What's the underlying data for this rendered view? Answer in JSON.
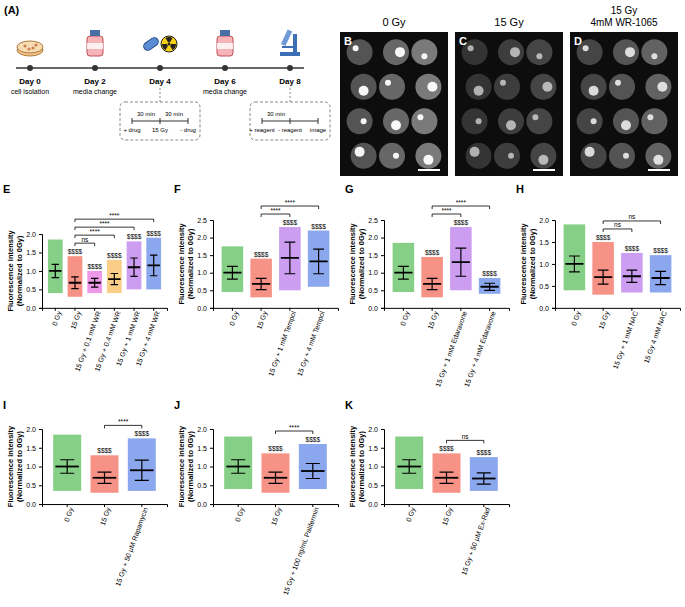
{
  "timeline": {
    "panel": "(A)",
    "steps": [
      {
        "day": "Day 0",
        "event": "cell isolation"
      },
      {
        "day": "Day 2",
        "event": "media change"
      },
      {
        "day": "Day 4",
        "intervals": [
          "30 min",
          "30 min"
        ],
        "points": [
          "+ drug",
          "15 Gy",
          "- drug"
        ]
      },
      {
        "day": "Day 6",
        "event": "media change"
      },
      {
        "day": "Day 8",
        "intervals": [
          "30 min"
        ],
        "points": [
          "+ reagent",
          "- reagent",
          "image"
        ]
      }
    ]
  },
  "images": [
    {
      "panel": "B",
      "title": [
        "0 Gy"
      ]
    },
    {
      "panel": "C",
      "title": [
        "15 Gy"
      ]
    },
    {
      "panel": "D",
      "title": [
        "15 Gy",
        "4mM WR-1065"
      ]
    }
  ],
  "chart_data": [
    {
      "type": "dot_plot",
      "panel": "E",
      "ylabel": "Fluorescence intensity (Normalized to 0Gy)",
      "categories": [
        "0 Gy",
        "15 Gy",
        "15 Gy + 0.1 mM WR",
        "15 Gy + 0.4 mM WR",
        "15 Gy + 1 mM WR",
        "15 Gy + 4 mM WR"
      ],
      "values": [
        1.0,
        0.68,
        0.68,
        0.78,
        1.1,
        1.15
      ],
      "error": [
        0.18,
        0.16,
        0.12,
        0.15,
        0.25,
        0.28
      ],
      "min": [
        0.4,
        0.3,
        0.4,
        0.4,
        0.5,
        0.5
      ],
      "max": [
        1.85,
        1.4,
        1.0,
        1.3,
        1.8,
        1.9
      ],
      "colors": [
        "#22a722",
        "#ee3a22",
        "#e046d6",
        "#f5a524",
        "#a24de6",
        "#2c5fe0"
      ],
      "ylim": [
        0,
        2
      ],
      "yticks": [
        {
          "value": 0,
          "label": "0.0"
        },
        {
          "value": 0.5,
          "label": "0.5"
        },
        {
          "value": 1,
          "label": "1.0"
        },
        {
          "value": 1.5,
          "label": "1.5"
        },
        {
          "value": 2,
          "label": "2.0"
        }
      ],
      "annotations": [
        {
          "category": 1,
          "text": "$$$$"
        },
        {
          "category": 2,
          "text": "$$$$"
        },
        {
          "category": 3,
          "text": "$$$$"
        },
        {
          "category": 4,
          "text": "$$$$"
        },
        {
          "category": 5,
          "text": "$$$$"
        }
      ],
      "brackets": [
        {
          "from": 1,
          "to": 2,
          "label": "ns"
        },
        {
          "from": 1,
          "to": 3,
          "label": "****"
        },
        {
          "from": 1,
          "to": 4,
          "label": "****"
        },
        {
          "from": 1,
          "to": 5,
          "label": "****"
        }
      ]
    },
    {
      "type": "dot_plot",
      "panel": "F",
      "ylabel": "Fluorescence intensity (Normalized to 0Gy)",
      "categories": [
        "0 Gy",
        "15 Gy",
        "15 Gy + 1 mM Tempol",
        "15 Gy + 4 mM Tempol"
      ],
      "values": [
        1.0,
        0.68,
        1.42,
        1.32
      ],
      "error": [
        0.18,
        0.16,
        0.45,
        0.35
      ],
      "min": [
        0.45,
        0.3,
        0.5,
        0.6
      ],
      "max": [
        1.75,
        1.4,
        2.3,
        2.2
      ],
      "colors": [
        "#22a722",
        "#ee3a22",
        "#a24de6",
        "#2c5fe0"
      ],
      "ylim": [
        0,
        2.5
      ],
      "yticks": [
        {
          "value": 0,
          "label": "0.0"
        },
        {
          "value": 0.5,
          "label": "0.5"
        },
        {
          "value": 1,
          "label": "1.0"
        },
        {
          "value": 1.5,
          "label": "1.5"
        },
        {
          "value": 2,
          "label": "2.0"
        },
        {
          "value": 2.5,
          "label": "2.5"
        }
      ],
      "annotations": [
        {
          "category": 1,
          "text": "$$$$"
        },
        {
          "category": 2,
          "text": "$$$$"
        },
        {
          "category": 3,
          "text": "$$$$"
        }
      ],
      "brackets": [
        {
          "from": 1,
          "to": 2,
          "label": "****"
        },
        {
          "from": 1,
          "to": 3,
          "label": "****"
        }
      ]
    },
    {
      "type": "dot_plot",
      "panel": "G",
      "ylabel": "Fluorescence intensity (Normalized to 0Gy)",
      "categories": [
        "0 Gy",
        "15 Gy",
        "15 Gy + 1 mM Edaravone",
        "15 Gy + 4 mM Edaravone"
      ],
      "values": [
        1.0,
        0.68,
        1.3,
        0.6
      ],
      "error": [
        0.18,
        0.16,
        0.4,
        0.1
      ],
      "min": [
        0.45,
        0.3,
        0.5,
        0.4
      ],
      "max": [
        1.85,
        1.45,
        2.3,
        0.85
      ],
      "colors": [
        "#22a722",
        "#ee3a22",
        "#a24de6",
        "#2c5fe0"
      ],
      "ylim": [
        0,
        2.5
      ],
      "yticks": [
        {
          "value": 0,
          "label": "0.0"
        },
        {
          "value": 0.5,
          "label": "0.5"
        },
        {
          "value": 1,
          "label": "1.0"
        },
        {
          "value": 1.5,
          "label": "1.5"
        },
        {
          "value": 2,
          "label": "2.0"
        },
        {
          "value": 2.5,
          "label": "2.5"
        }
      ],
      "annotations": [
        {
          "category": 1,
          "text": "$$$$"
        },
        {
          "category": 2,
          "text": "$$$$"
        },
        {
          "category": 3,
          "text": "$$$$"
        }
      ],
      "brackets": [
        {
          "from": 1,
          "to": 2,
          "label": "****"
        },
        {
          "from": 1,
          "to": 3,
          "label": "****"
        }
      ]
    },
    {
      "type": "dot_plot",
      "panel": "H",
      "ylabel": "Fluorescence intensity (Normalized to 0Gy)",
      "categories": [
        "0 Gy",
        "15 Gy",
        "15 Gy + 1 mM NAC",
        "15 Gy 4 mM NAC"
      ],
      "values": [
        1.0,
        0.7,
        0.72,
        0.68
      ],
      "error": [
        0.18,
        0.16,
        0.14,
        0.15
      ],
      "min": [
        0.4,
        0.3,
        0.35,
        0.35
      ],
      "max": [
        1.9,
        1.5,
        1.25,
        1.2
      ],
      "colors": [
        "#22a722",
        "#ee3a22",
        "#a24de6",
        "#2c5fe0"
      ],
      "ylim": [
        0,
        2
      ],
      "yticks": [
        {
          "value": 0,
          "label": "0.0"
        },
        {
          "value": 0.5,
          "label": "0.5"
        },
        {
          "value": 1,
          "label": "1.0"
        },
        {
          "value": 1.5,
          "label": "1.5"
        },
        {
          "value": 2,
          "label": "2.0"
        }
      ],
      "annotations": [
        {
          "category": 1,
          "text": "$$$$"
        },
        {
          "category": 2,
          "text": "$$$$"
        },
        {
          "category": 3,
          "text": "$$$$"
        }
      ],
      "brackets": [
        {
          "from": 1,
          "to": 2,
          "label": "ns"
        },
        {
          "from": 1,
          "to": 3,
          "label": "ns"
        }
      ]
    },
    {
      "type": "dot_plot",
      "panel": "I",
      "ylabel": "Fluorescence intensity (Normalized to 0Gy)",
      "categories": [
        "0 Gy",
        "15 Gy",
        "15 Gy + 50 µM Rapamycin"
      ],
      "values": [
        1.0,
        0.7,
        0.9
      ],
      "error": [
        0.18,
        0.15,
        0.27
      ],
      "min": [
        0.35,
        0.3,
        0.35
      ],
      "max": [
        1.85,
        1.3,
        1.75
      ],
      "colors": [
        "#22a722",
        "#ee3a22",
        "#2c5fe0"
      ],
      "ylim": [
        0,
        2
      ],
      "yticks": [
        {
          "value": 0,
          "label": "0.0"
        },
        {
          "value": 0.5,
          "label": "0.5"
        },
        {
          "value": 1,
          "label": "1.0"
        },
        {
          "value": 1.5,
          "label": "1.5"
        },
        {
          "value": 2,
          "label": "2.0"
        }
      ],
      "annotations": [
        {
          "category": 1,
          "text": "$$$$"
        },
        {
          "category": 2,
          "text": "$$$$"
        }
      ],
      "brackets": [
        {
          "from": 1,
          "to": 2,
          "label": "****"
        }
      ]
    },
    {
      "type": "dot_plot",
      "panel": "J",
      "ylabel": "Fluorescence intensity (Normalized to 0Gy)",
      "categories": [
        "0 Gy",
        "15 Gy",
        "15 Gy + 100 ng/mL Palifermin"
      ],
      "values": [
        1.0,
        0.7,
        0.88
      ],
      "error": [
        0.18,
        0.15,
        0.2
      ],
      "min": [
        0.4,
        0.3,
        0.4
      ],
      "max": [
        1.8,
        1.35,
        1.6
      ],
      "colors": [
        "#22a722",
        "#ee3a22",
        "#2c5fe0"
      ],
      "ylim": [
        0,
        2
      ],
      "yticks": [
        {
          "value": 0,
          "label": "0.0"
        },
        {
          "value": 0.5,
          "label": "0.5"
        },
        {
          "value": 1,
          "label": "1.0"
        },
        {
          "value": 1.5,
          "label": "1.5"
        },
        {
          "value": 2,
          "label": "2.0"
        }
      ],
      "annotations": [
        {
          "category": 1,
          "text": "$$$$"
        },
        {
          "category": 2,
          "text": "$$$$"
        }
      ],
      "brackets": [
        {
          "from": 1,
          "to": 2,
          "label": "****"
        }
      ]
    },
    {
      "type": "dot_plot",
      "panel": "K",
      "ylabel": "Fluorescence intensity (Normalized to 0Gy)",
      "categories": [
        "0 Gy",
        "15 Gy",
        "15 Gy + 50 µM Ex-Rad"
      ],
      "values": [
        1.0,
        0.7,
        0.68
      ],
      "error": [
        0.18,
        0.15,
        0.15
      ],
      "min": [
        0.4,
        0.3,
        0.35
      ],
      "max": [
        1.8,
        1.35,
        1.25
      ],
      "colors": [
        "#22a722",
        "#ee3a22",
        "#2c5fe0"
      ],
      "ylim": [
        0,
        2
      ],
      "yticks": [
        {
          "value": 0,
          "label": "0.0"
        },
        {
          "value": 0.5,
          "label": "0.5"
        },
        {
          "value": 1,
          "label": "1.0"
        },
        {
          "value": 1.5,
          "label": "1.5"
        },
        {
          "value": 2,
          "label": "2.0"
        }
      ],
      "annotations": [
        {
          "category": 1,
          "text": "$$$$"
        },
        {
          "category": 2,
          "text": "$$$$"
        }
      ],
      "brackets": [
        {
          "from": 1,
          "to": 2,
          "label": "ns"
        }
      ]
    }
  ]
}
